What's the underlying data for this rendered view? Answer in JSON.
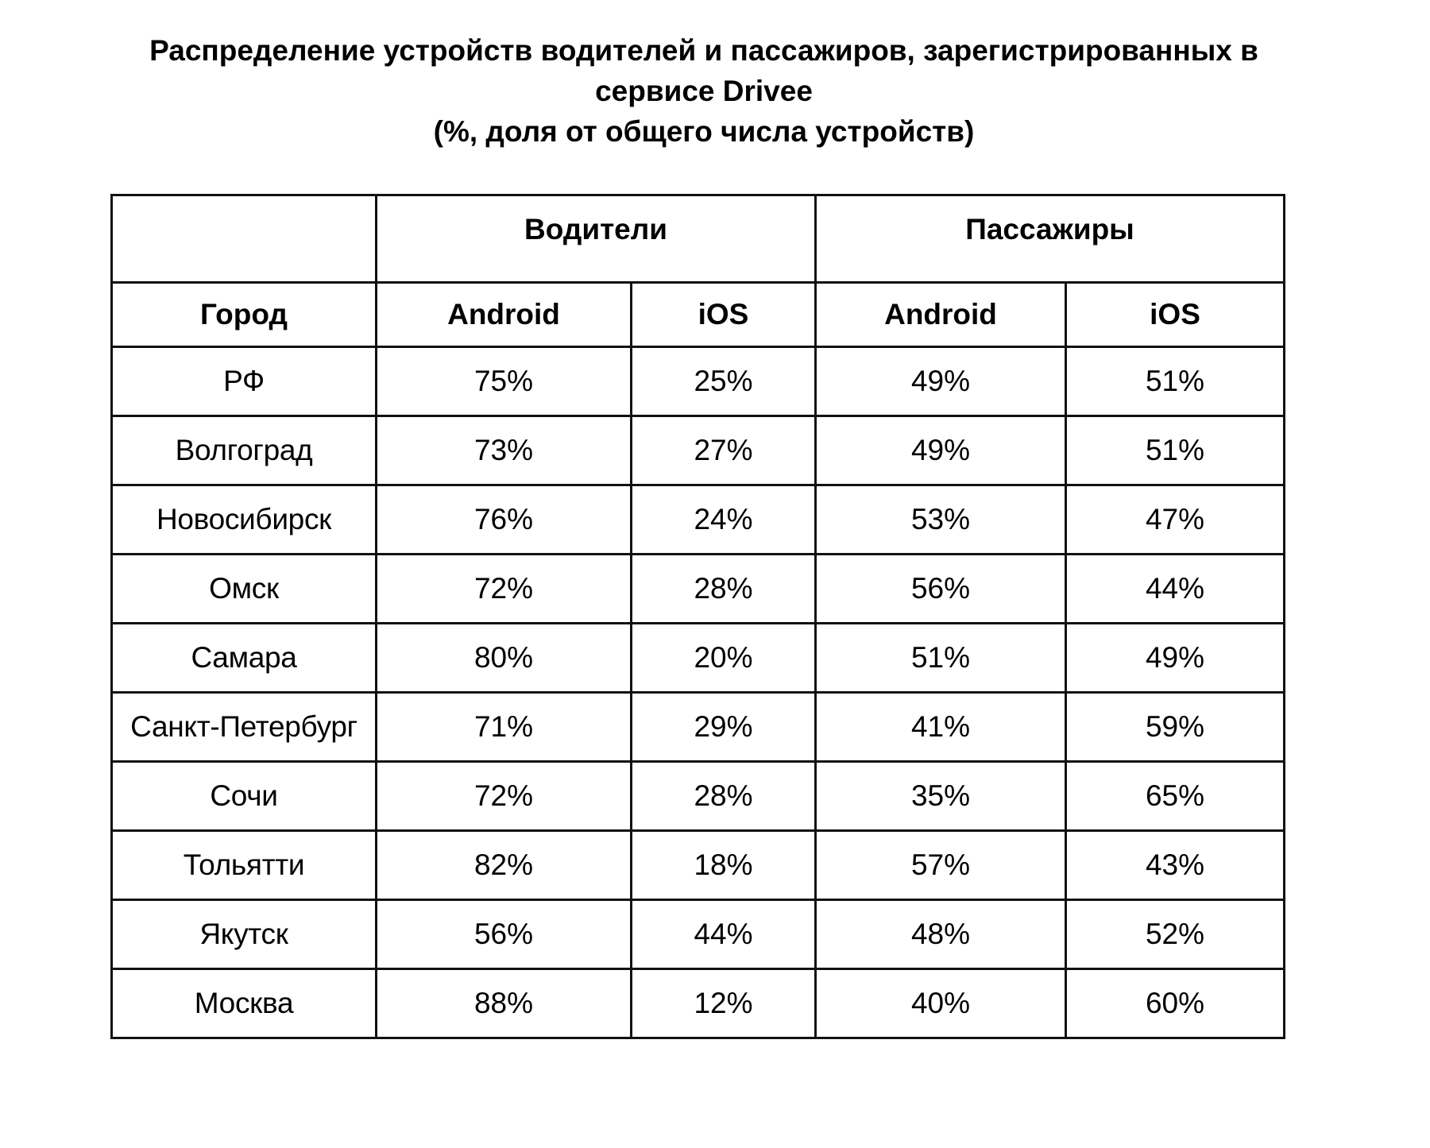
{
  "title": {
    "line1": "Распределение устройств водителей и пассажиров, зарегистрированных в",
    "line2": "сервисе Drivee",
    "line3": "(%, доля от общего числа устройств)"
  },
  "table": {
    "group_headers": {
      "empty": "",
      "drivers": "Водители",
      "passengers": "Пассажиры"
    },
    "sub_headers": {
      "city": "Город",
      "drivers_android": "Android",
      "drivers_ios": "iOS",
      "passengers_android": "Android",
      "passengers_ios": "iOS"
    },
    "rows": [
      {
        "city": "РФ",
        "drivers_android": "75%",
        "drivers_ios": "25%",
        "passengers_android": "49%",
        "passengers_ios": "51%"
      },
      {
        "city": "Волгоград",
        "drivers_android": "73%",
        "drivers_ios": "27%",
        "passengers_android": "49%",
        "passengers_ios": "51%"
      },
      {
        "city": "Новосибирск",
        "drivers_android": "76%",
        "drivers_ios": "24%",
        "passengers_android": "53%",
        "passengers_ios": "47%"
      },
      {
        "city": "Омск",
        "drivers_android": "72%",
        "drivers_ios": "28%",
        "passengers_android": "56%",
        "passengers_ios": "44%"
      },
      {
        "city": "Самара",
        "drivers_android": "80%",
        "drivers_ios": "20%",
        "passengers_android": "51%",
        "passengers_ios": "49%"
      },
      {
        "city": "Санкт-Петербург",
        "drivers_android": "71%",
        "drivers_ios": "29%",
        "passengers_android": "41%",
        "passengers_ios": "59%"
      },
      {
        "city": "Сочи",
        "drivers_android": "72%",
        "drivers_ios": "28%",
        "passengers_android": "35%",
        "passengers_ios": "65%"
      },
      {
        "city": "Тольятти",
        "drivers_android": "82%",
        "drivers_ios": "18%",
        "passengers_android": "57%",
        "passengers_ios": "43%"
      },
      {
        "city": "Якутск",
        "drivers_android": "56%",
        "drivers_ios": "44%",
        "passengers_android": "48%",
        "passengers_ios": "52%"
      },
      {
        "city": "Москва",
        "drivers_android": "88%",
        "drivers_ios": "12%",
        "passengers_android": "40%",
        "passengers_ios": "60%"
      }
    ]
  },
  "colors": {
    "background": "#ffffff",
    "text": "#000000",
    "border": "#111111"
  }
}
